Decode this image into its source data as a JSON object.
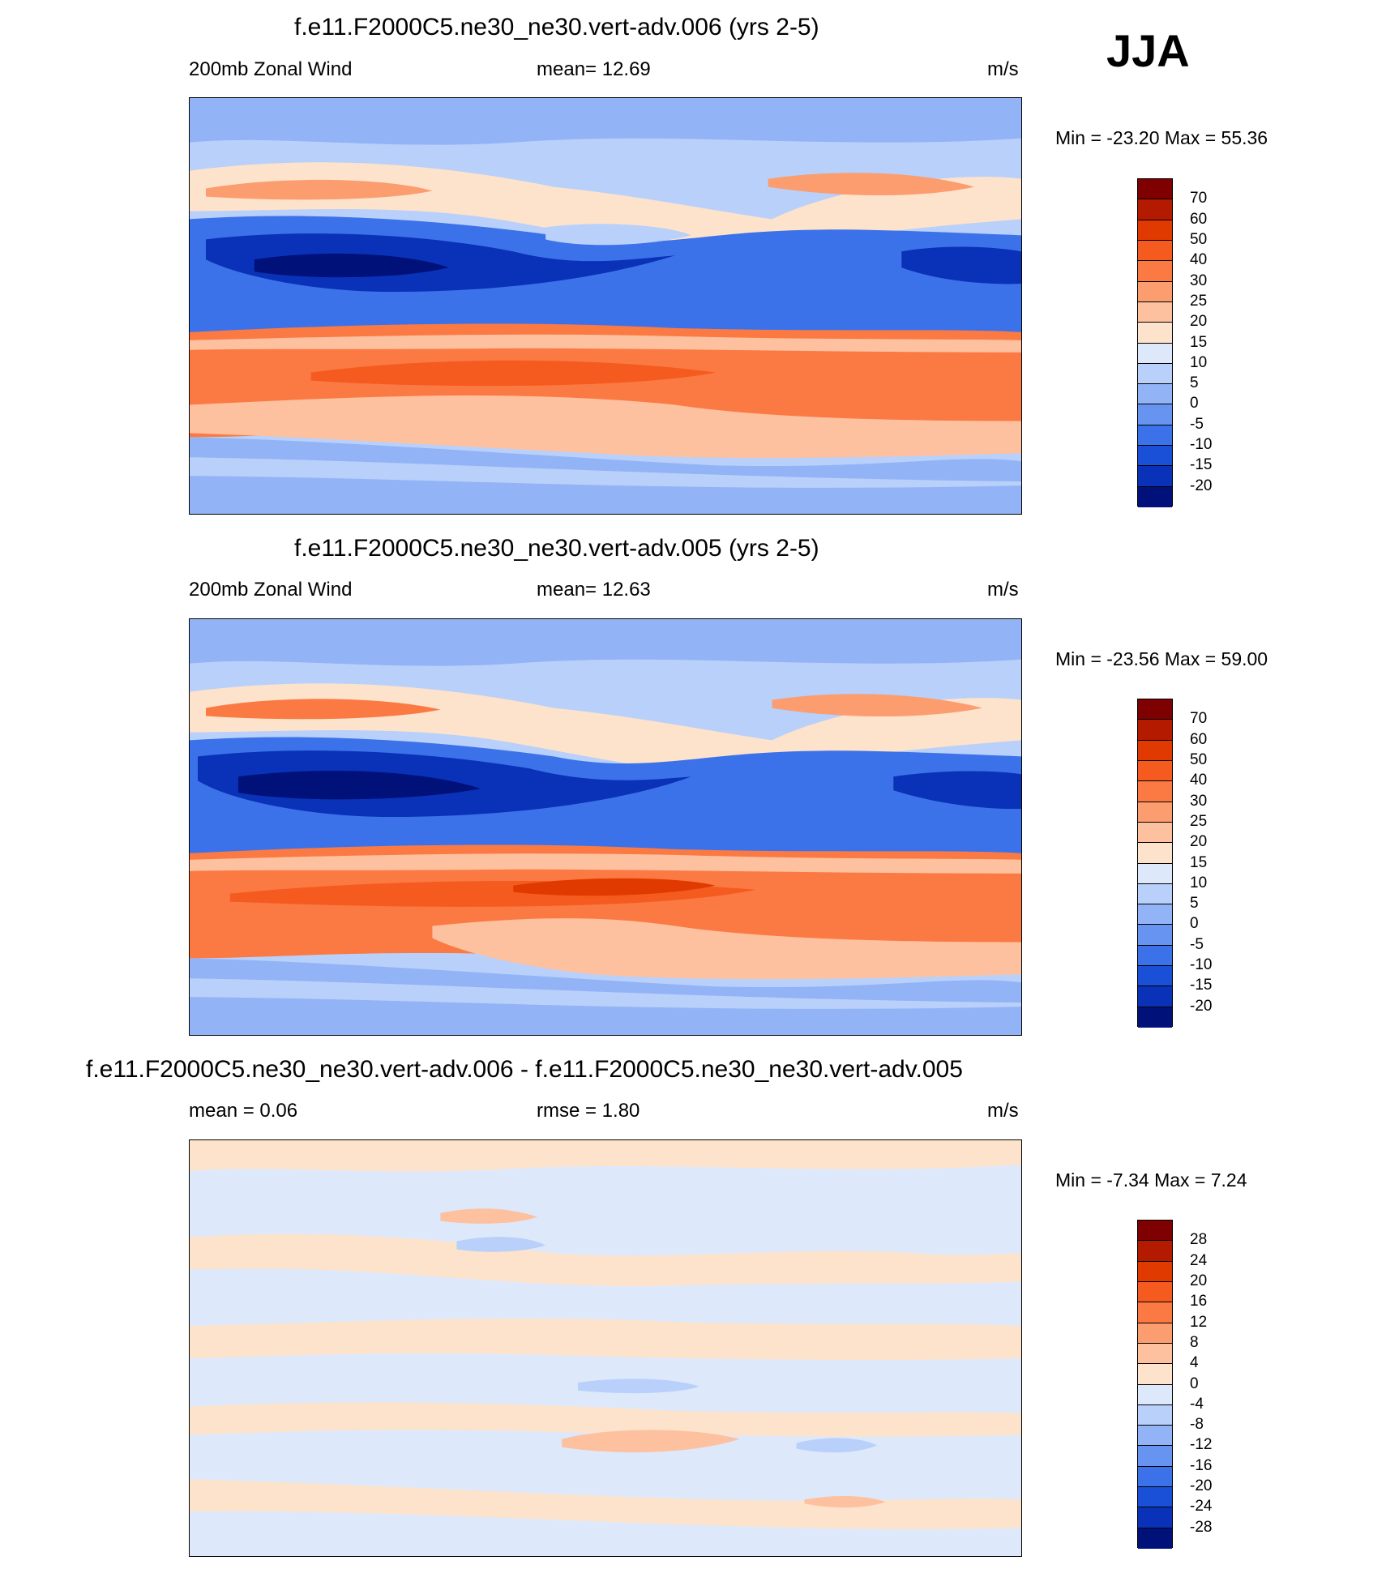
{
  "season": "JJA",
  "panels": [
    {
      "id": "top",
      "title": "f.e11.F2000C5.ne30_ne30.vert-adv.006 (yrs 2-5)",
      "left_label": "200mb Zonal Wind",
      "center_label": "mean=  12.69",
      "units": "m/s",
      "minmax": "Min = -23.20 Max =  55.36"
    },
    {
      "id": "middle",
      "title": "f.e11.F2000C5.ne30_ne30.vert-adv.005 (yrs 2-5)",
      "left_label": "200mb Zonal Wind",
      "center_label": "mean=  12.63",
      "units": "m/s",
      "minmax": "Min = -23.56 Max =  59.00"
    },
    {
      "id": "diff",
      "title": "f.e11.F2000C5.ne30_ne30.vert-adv.006 - f.e11.F2000C5.ne30_ne30.vert-adv.005",
      "left_label": "mean =   0.06",
      "center_label": "rmse =   1.80",
      "units": "m/s",
      "minmax": "Min =  -7.34 Max =   7.24"
    }
  ],
  "colorbars": {
    "wind": {
      "labels": [
        "70",
        "60",
        "50",
        "40",
        "30",
        "25",
        "20",
        "15",
        "10",
        "5",
        "0",
        "-5",
        "-10",
        "-15",
        "-20"
      ],
      "colors": [
        "#7f0000",
        "#b31a00",
        "#e03a00",
        "#f55a1e",
        "#fb7a44",
        "#fc9d70",
        "#fdc1a0",
        "#fde3cc",
        "#dde9fb",
        "#b9d0fa",
        "#92b4f6",
        "#6694f0",
        "#3c72e9",
        "#1a4fd8",
        "#0a32b8",
        "#00127a"
      ]
    },
    "diff": {
      "labels": [
        "28",
        "24",
        "20",
        "16",
        "12",
        "8",
        "4",
        "0",
        "-4",
        "-8",
        "-12",
        "-16",
        "-20",
        "-24",
        "-28"
      ],
      "colors": [
        "#7f0000",
        "#b31a00",
        "#e03a00",
        "#f55a1e",
        "#fb7a44",
        "#fc9d70",
        "#fdc1a0",
        "#fde3cc",
        "#dde9fb",
        "#b9d0fa",
        "#92b4f6",
        "#6694f0",
        "#3c72e9",
        "#1a4fd8",
        "#0a32b8",
        "#00127a"
      ]
    }
  }
}
